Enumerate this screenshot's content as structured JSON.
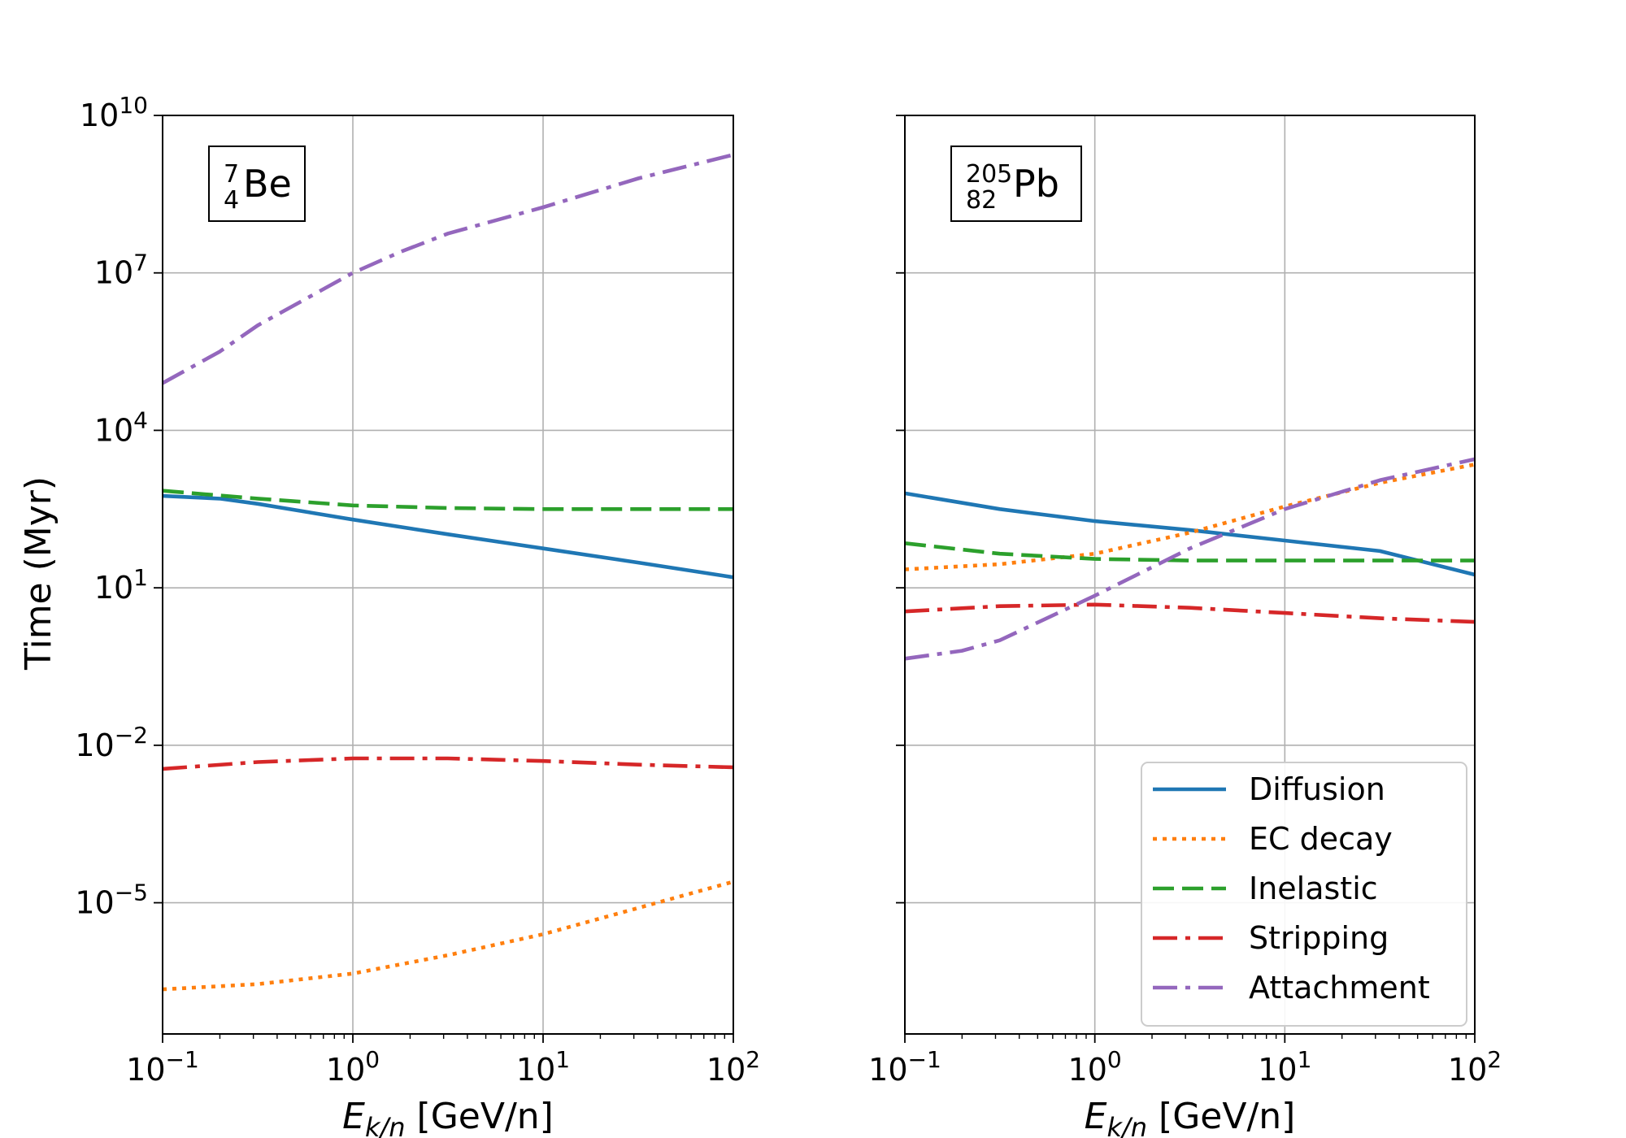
{
  "figure": {
    "ylabel": "Time (Myr)",
    "xlabel_var": "E",
    "xlabel_sub": "k/n",
    "xlabel_unit": " [GeV/n]"
  },
  "colors": {
    "Diffusion": "#1f77b4",
    "EC decay": "#ff7f0e",
    "Inelastic": "#2ca02c",
    "Stripping": "#d62728",
    "Attachment": "#9467bd",
    "grid": "#b0b0b0"
  },
  "legend": {
    "placement": "lower-right of right panel",
    "entries": [
      "Diffusion",
      "EC decay",
      "Inelastic",
      "Stripping",
      "Attachment"
    ]
  },
  "xticks": [
    {
      "base": "10",
      "exp": "−1"
    },
    {
      "base": "10",
      "exp": "0"
    },
    {
      "base": "10",
      "exp": "1"
    },
    {
      "base": "10",
      "exp": "2"
    }
  ],
  "yticks": [
    {
      "base": "10",
      "exp": "10"
    },
    {
      "base": "10",
      "exp": "7"
    },
    {
      "base": "10",
      "exp": "4"
    },
    {
      "base": "10",
      "exp": "1"
    },
    {
      "base": "10",
      "exp": "−2"
    },
    {
      "base": "10",
      "exp": "−5"
    }
  ],
  "panels": [
    {
      "nuclide": {
        "mass": "7",
        "charge": "4",
        "symbol": "Be"
      },
      "show_ylabel": true
    },
    {
      "nuclide": {
        "mass": "205",
        "charge": "82",
        "symbol": "Pb"
      },
      "show_ylabel": false
    }
  ],
  "chart_data": [
    {
      "type": "line",
      "title": "7/4 Be",
      "xlabel": "E_k/n [GeV/n]",
      "ylabel": "Time (Myr)",
      "xscale": "log",
      "yscale": "log",
      "xlim": [
        0.1,
        100
      ],
      "ylim_log10": [
        -7.5,
        10
      ],
      "grid": true,
      "series": [
        {
          "name": "Diffusion",
          "style": "solid",
          "x_log10": [
            -1,
            -0.7,
            -0.5,
            0,
            0.5,
            1,
            1.5,
            2
          ],
          "y_log10": [
            2.75,
            2.7,
            2.6,
            2.3,
            2.02,
            1.75,
            1.48,
            1.2
          ]
        },
        {
          "name": "EC decay",
          "style": "dotted",
          "x_log10": [
            -1,
            -0.5,
            0,
            0.5,
            1,
            1.5,
            2
          ],
          "y_log10": [
            -6.65,
            -6.55,
            -6.35,
            -6.0,
            -5.6,
            -5.1,
            -4.6
          ]
        },
        {
          "name": "Inelastic",
          "style": "dashed",
          "x_log10": [
            -1,
            -0.5,
            0,
            0.5,
            1,
            1.5,
            2
          ],
          "y_log10": [
            2.85,
            2.7,
            2.57,
            2.52,
            2.5,
            2.5,
            2.5
          ]
        },
        {
          "name": "Stripping",
          "style": "dashdot",
          "x_log10": [
            -1,
            -0.5,
            0,
            0.5,
            1,
            1.5,
            2
          ],
          "y_log10": [
            -2.45,
            -2.32,
            -2.25,
            -2.25,
            -2.3,
            -2.37,
            -2.42
          ]
        },
        {
          "name": "Attachment",
          "style": "dashdot",
          "x_log10": [
            -1,
            -0.7,
            -0.5,
            0,
            0.25,
            0.5,
            1,
            1.5,
            2
          ],
          "y_log10": [
            4.9,
            5.5,
            6.0,
            7.0,
            7.4,
            7.75,
            8.25,
            8.8,
            9.25
          ]
        }
      ]
    },
    {
      "type": "line",
      "title": "205/82 Pb",
      "xlabel": "E_k/n [GeV/n]",
      "ylabel": "",
      "xscale": "log",
      "yscale": "log",
      "xlim": [
        0.1,
        100
      ],
      "ylim_log10": [
        -7.5,
        10
      ],
      "grid": true,
      "series": [
        {
          "name": "Diffusion",
          "style": "solid",
          "x_log10": [
            -1,
            -0.5,
            0,
            0.5,
            1,
            1.5,
            2
          ],
          "y_log10": [
            2.8,
            2.5,
            2.27,
            2.1,
            1.9,
            1.7,
            1.25
          ]
        },
        {
          "name": "EC decay",
          "style": "dotted",
          "x_log10": [
            -1,
            -0.5,
            0,
            0.5,
            1,
            1.5,
            2
          ],
          "y_log10": [
            1.35,
            1.45,
            1.65,
            2.05,
            2.55,
            3.0,
            3.35
          ]
        },
        {
          "name": "Inelastic",
          "style": "dashed",
          "x_log10": [
            -1,
            -0.5,
            0,
            0.5,
            1,
            1.5,
            2
          ],
          "y_log10": [
            1.85,
            1.65,
            1.55,
            1.52,
            1.52,
            1.52,
            1.52
          ]
        },
        {
          "name": "Stripping",
          "style": "dashdot",
          "x_log10": [
            -1,
            -0.5,
            0,
            0.5,
            1,
            1.5,
            2
          ],
          "y_log10": [
            0.55,
            0.65,
            0.68,
            0.62,
            0.52,
            0.42,
            0.35
          ]
        },
        {
          "name": "Attachment",
          "style": "dashdot",
          "x_log10": [
            -1,
            -0.7,
            -0.5,
            0,
            0.5,
            1,
            1.5,
            2
          ],
          "y_log10": [
            -0.35,
            -0.2,
            0.0,
            0.85,
            1.75,
            2.5,
            3.05,
            3.45
          ]
        }
      ]
    }
  ]
}
